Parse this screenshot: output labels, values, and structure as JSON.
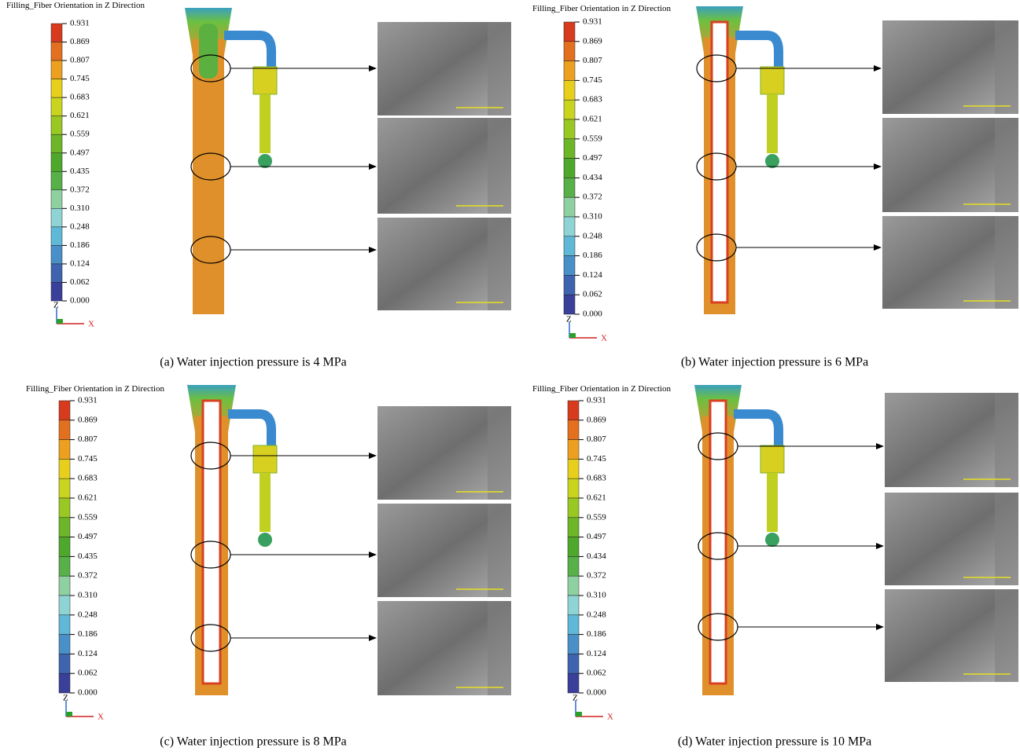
{
  "panels": [
    {
      "title": "Filling_Fiber Orientation in Z Direction",
      "scale_labels": [
        "0.931",
        "0.869",
        "0.807",
        "0.745",
        "0.683",
        "0.621",
        "0.559",
        "0.497",
        "0.435",
        "0.372",
        "0.310",
        "0.248",
        "0.186",
        "0.124",
        "0.062",
        "0.000"
      ],
      "axis": {
        "z": "Z",
        "x": "X"
      },
      "caption": "(a) Water injection pressure is 4 MPa"
    },
    {
      "title": "Filling_Fiber Orientation in Z Direction",
      "scale_labels": [
        "0.931",
        "0.869",
        "0.807",
        "0.745",
        "0.683",
        "0.621",
        "0.559",
        "0.497",
        "0.434",
        "0.372",
        "0.310",
        "0.248",
        "0.186",
        "0.124",
        "0.062",
        "0.000"
      ],
      "axis": {
        "z": "Z",
        "x": "X"
      },
      "caption": "(b) Water injection pressure is 6 MPa"
    },
    {
      "title": "Filling_Fiber Orientation in Z Direction",
      "scale_labels": [
        "0.931",
        "0.869",
        "0.807",
        "0.745",
        "0.683",
        "0.621",
        "0.559",
        "0.497",
        "0.435",
        "0.372",
        "0.310",
        "0.248",
        "0.186",
        "0.124",
        "0.062",
        "0.000"
      ],
      "axis": {
        "z": "Z",
        "x": "X"
      },
      "caption": "(c) Water injection pressure is 8 MPa"
    },
    {
      "title": "Filling_Fiber Orientation in Z Direction",
      "scale_labels": [
        "0.931",
        "0.869",
        "0.807",
        "0.745",
        "0.683",
        "0.621",
        "0.559",
        "0.497",
        "0.434",
        "0.372",
        "0.310",
        "0.248",
        "0.186",
        "0.124",
        "0.062",
        "0.000"
      ],
      "axis": {
        "z": "Z",
        "x": "X"
      },
      "caption": "(d) Water injection pressure is 10 MPa"
    }
  ]
}
